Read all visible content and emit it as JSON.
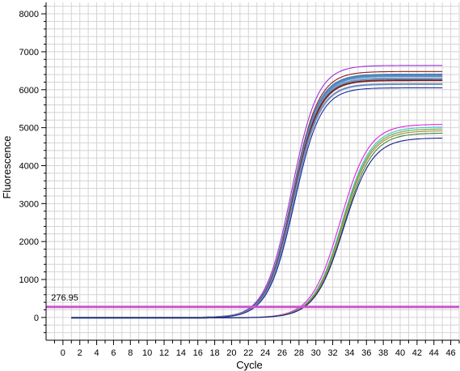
{
  "chart_data": {
    "type": "line",
    "title": "",
    "xlabel": "Cycle",
    "ylabel": "Fluorescence",
    "xlim": [
      -2,
      47
    ],
    "ylim": [
      -600,
      8300
    ],
    "xticks": [
      0,
      2,
      4,
      6,
      8,
      10,
      12,
      14,
      16,
      18,
      20,
      22,
      24,
      26,
      28,
      30,
      32,
      34,
      36,
      38,
      40,
      42,
      44,
      46
    ],
    "yticks": [
      0,
      1000,
      2000,
      3000,
      4000,
      5000,
      6000,
      7000,
      8000
    ],
    "grid": true,
    "legend": "none",
    "threshold": {
      "value": 276.95,
      "label": "276.95",
      "color": "#cc55cc"
    },
    "cycles": [
      1,
      45
    ],
    "series": [
      {
        "color": "#9b30d9",
        "plateau": 6640,
        "midpoint": 27.1,
        "slope": 1.55
      },
      {
        "color": "#8b1a1a",
        "plateau": 6480,
        "midpoint": 27.2,
        "slope": 1.55
      },
      {
        "color": "#4a7fb5",
        "plateau": 6400,
        "midpoint": 27.25,
        "slope": 1.55
      },
      {
        "color": "#5b8fc7",
        "plateau": 6360,
        "midpoint": 27.3,
        "slope": 1.55
      },
      {
        "color": "#6a9ac9",
        "plateau": 6300,
        "midpoint": 27.3,
        "slope": 1.55
      },
      {
        "color": "#7c2a2a",
        "plateau": 6250,
        "midpoint": 27.3,
        "slope": 1.55
      },
      {
        "color": "#6f8fbf",
        "plateau": 6150,
        "midpoint": 27.35,
        "slope": 1.55
      },
      {
        "color": "#1a2a9b",
        "plateau": 6050,
        "midpoint": 27.45,
        "slope": 1.55
      },
      {
        "color": "#e020e0",
        "plateau": 5090,
        "midpoint": 32.9,
        "slope": 1.7
      },
      {
        "color": "#40c0c0",
        "plateau": 5020,
        "midpoint": 33.1,
        "slope": 1.7
      },
      {
        "color": "#60b040",
        "plateau": 4970,
        "midpoint": 33.15,
        "slope": 1.7
      },
      {
        "color": "#b08040",
        "plateau": 4920,
        "midpoint": 33.2,
        "slope": 1.7
      },
      {
        "color": "#3a8a3a",
        "plateau": 4860,
        "midpoint": 33.3,
        "slope": 1.7
      },
      {
        "color": "#1a1a8a",
        "plateau": 4730,
        "midpoint": 33.3,
        "slope": 1.7
      }
    ]
  }
}
